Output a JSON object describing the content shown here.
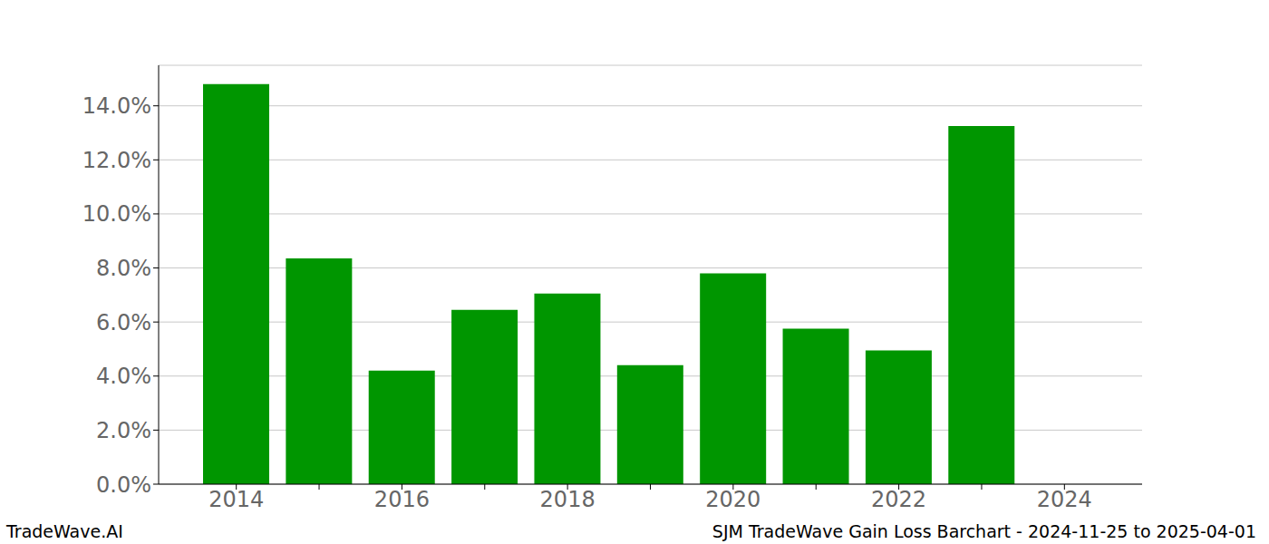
{
  "chart_data": {
    "type": "bar",
    "categories": [
      "2014",
      null,
      "2016",
      null,
      "2018",
      null,
      "2020",
      null,
      "2022",
      null,
      "2024"
    ],
    "values": [
      14.8,
      8.35,
      4.2,
      6.45,
      7.05,
      4.4,
      7.8,
      5.75,
      4.95,
      13.25,
      null
    ],
    "color": "#009600",
    "ylim": [
      0,
      15.5
    ],
    "yticks": [
      {
        "value": 0,
        "label": "0.0%"
      },
      {
        "value": 2,
        "label": "2.0%"
      },
      {
        "value": 4,
        "label": "4.0%"
      },
      {
        "value": 6,
        "label": "6.0%"
      },
      {
        "value": 8,
        "label": "8.0%"
      },
      {
        "value": 10,
        "label": "10.0%"
      },
      {
        "value": 12,
        "label": "12.0%"
      },
      {
        "value": 14,
        "label": "14.0%"
      }
    ],
    "grid": true,
    "annotations": [
      "TradeWave.AI",
      "SJM TradeWave Gain Loss Barchart - 2024-11-25 to 2025-04-01"
    ]
  }
}
